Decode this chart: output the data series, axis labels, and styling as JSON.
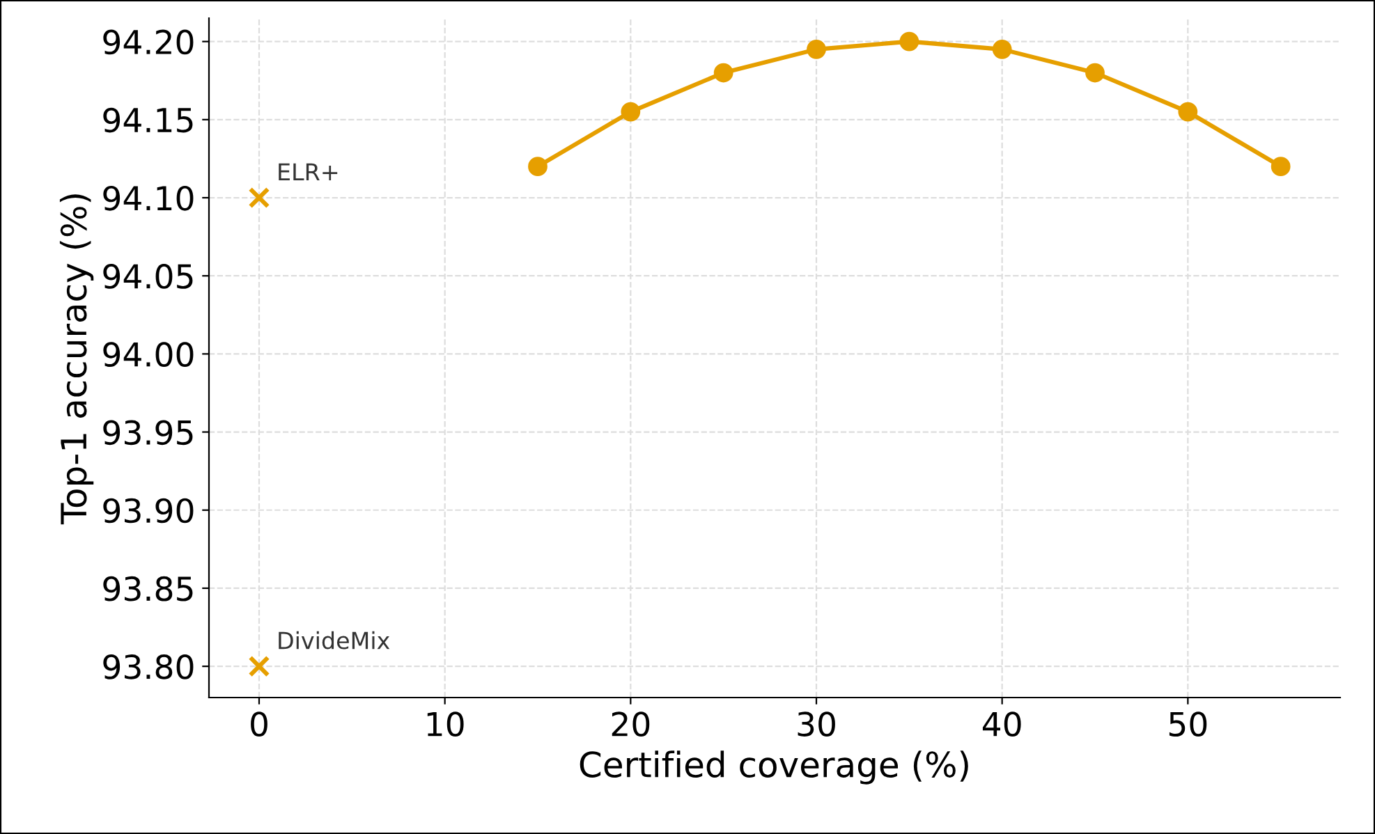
{
  "chart_data": {
    "type": "line",
    "xlabel": "Certified coverage (%)",
    "ylabel": "Top-1 accuracy (%)",
    "series": [
      {
        "color": "#e69f00",
        "marker": "circle",
        "x": [
          15,
          20,
          25,
          30,
          35,
          40,
          45,
          50,
          55
        ],
        "values": [
          94.12,
          94.155,
          94.18,
          94.195,
          94.2,
          94.195,
          94.18,
          94.155,
          94.12
        ]
      },
      {
        "type": "scatter",
        "color": "#e69f00",
        "marker": "cross",
        "x": [
          0,
          0
        ],
        "values": [
          94.1,
          93.8
        ]
      }
    ],
    "annotations": [
      {
        "text": "ELR+",
        "x": 0,
        "y": 94.1
      },
      {
        "text": "DivideMix",
        "x": 0,
        "y": 93.8
      }
    ],
    "xlim": [
      -2.7,
      58.2
    ],
    "ylim": [
      93.78,
      94.215
    ],
    "xticks": [
      0,
      10,
      20,
      30,
      40,
      50
    ],
    "yticks": [
      {
        "value": 93.8,
        "label": "93.80"
      },
      {
        "value": 93.85,
        "label": "93.85"
      },
      {
        "value": 93.9,
        "label": "93.90"
      },
      {
        "value": 93.95,
        "label": "93.95"
      },
      {
        "value": 94.0,
        "label": "94.00"
      },
      {
        "value": 94.05,
        "label": "94.05"
      },
      {
        "value": 94.1,
        "label": "94.10"
      },
      {
        "value": 94.15,
        "label": "94.15"
      },
      {
        "value": 94.2,
        "label": "94.20"
      }
    ],
    "grid": true
  }
}
